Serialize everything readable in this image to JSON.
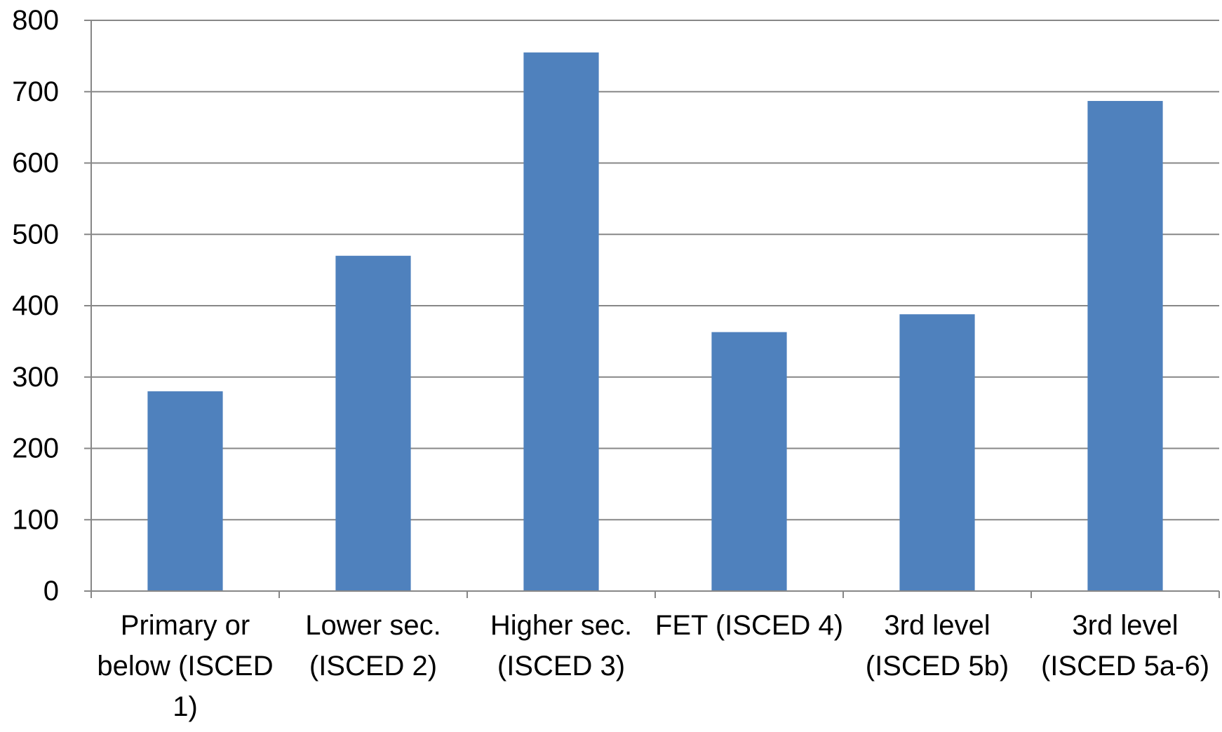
{
  "chart_data": {
    "type": "bar",
    "title": "",
    "xlabel": "",
    "ylabel": "",
    "categories": [
      [
        "Primary or",
        "below (ISCED",
        "1)"
      ],
      [
        "Lower sec.",
        "(ISCED 2)"
      ],
      [
        "Higher sec.",
        "(ISCED 3)"
      ],
      [
        "FET (ISCED 4)"
      ],
      [
        "3rd level",
        "(ISCED 5b)"
      ],
      [
        "3rd level",
        "(ISCED 5a-6)"
      ]
    ],
    "values": [
      280,
      470,
      755,
      363,
      388,
      687
    ],
    "ylim": [
      0,
      800
    ],
    "yticks": [
      0,
      100,
      200,
      300,
      400,
      500,
      600,
      700,
      800
    ],
    "grid": true,
    "legend": "none",
    "colors": {
      "bar": "#4F81BD",
      "grid": "#878787",
      "axis": "#878787",
      "text": "#000000"
    }
  }
}
